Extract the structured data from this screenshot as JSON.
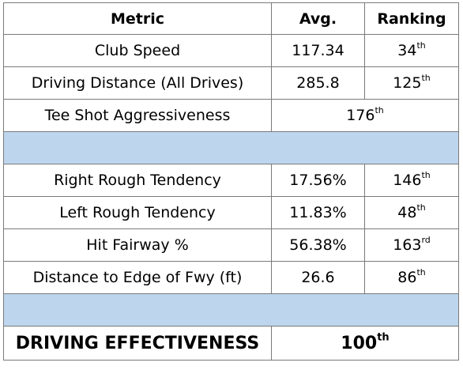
{
  "table": {
    "headers": {
      "metric": "Metric",
      "avg": "Avg.",
      "ranking": "Ranking"
    },
    "rows": [
      {
        "metric": "Club Speed",
        "avg": "117.34",
        "rank": "34",
        "suffix": "th"
      },
      {
        "metric": "Driving Distance (All Drives)",
        "avg": "285.8",
        "rank": "125",
        "suffix": "th"
      },
      {
        "metric": "Tee Shot Aggressiveness",
        "combined_rank": "176",
        "combined_suffix": "th"
      },
      {
        "metric": "Right Rough Tendency",
        "avg": "17.56%",
        "rank": "146",
        "suffix": "th"
      },
      {
        "metric": "Left Rough Tendency",
        "avg": "11.83%",
        "rank": "48",
        "suffix": "th"
      },
      {
        "metric": "Hit Fairway %",
        "avg": "56.38%",
        "rank": "163",
        "suffix": "rd"
      },
      {
        "metric": "Distance to Edge of Fwy (ft)",
        "avg": "26.6",
        "rank": "86",
        "suffix": "th"
      }
    ],
    "total": {
      "label": "DRIVING EFFECTIVENESS",
      "rank": "100",
      "suffix": "th"
    },
    "colors": {
      "separator": "#bdd6ee",
      "border": "#7a7a7a"
    }
  }
}
